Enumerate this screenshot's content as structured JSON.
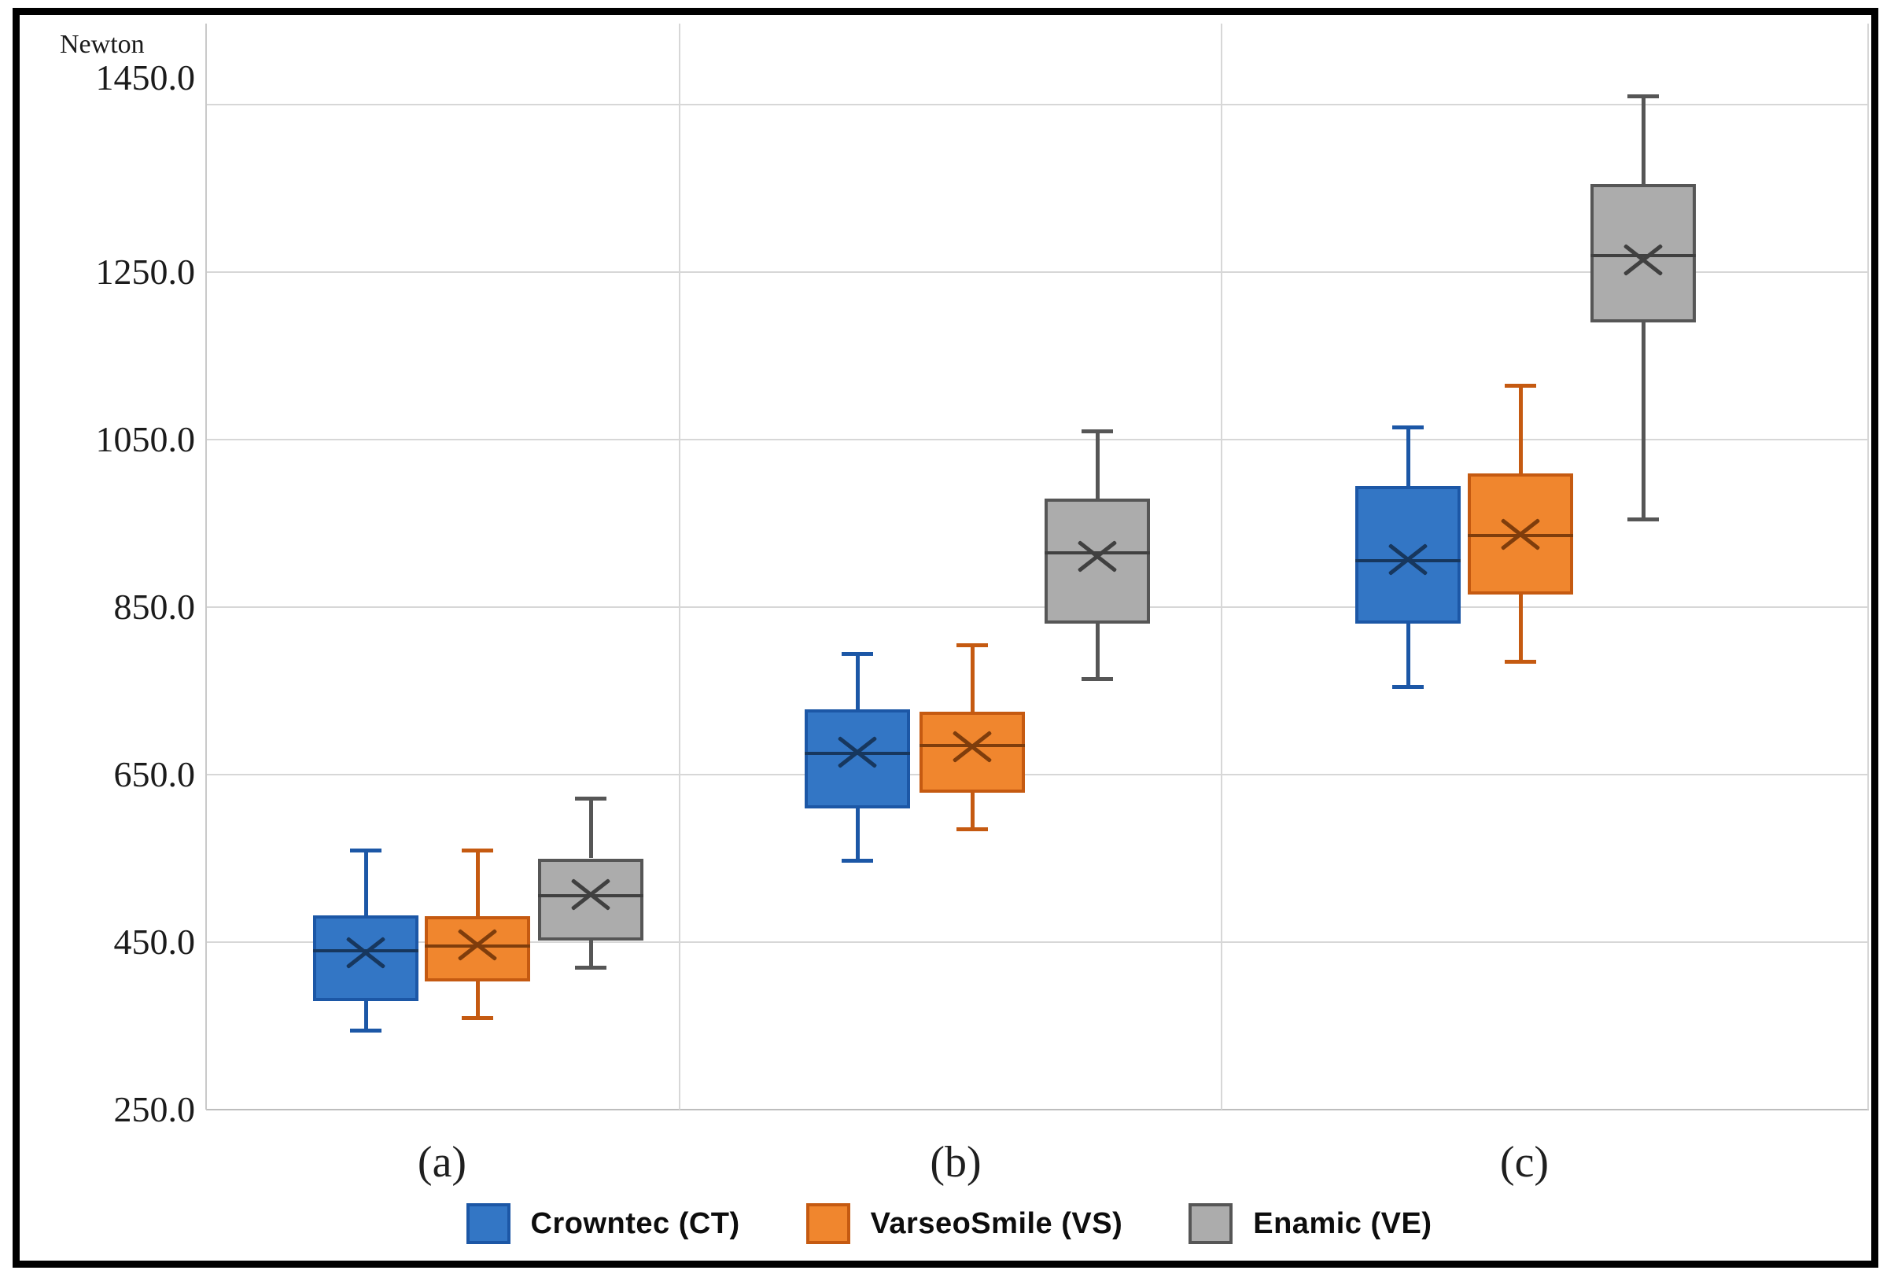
{
  "axis": {
    "title": "Newton",
    "tick_labels": [
      "1450.0",
      "1250.0",
      "1050.0",
      "850.0",
      "650.0",
      "450.0",
      "250.0"
    ],
    "tick_values": [
      1450,
      1250,
      1050,
      850,
      650,
      450,
      250
    ],
    "min": 250,
    "max": 1450
  },
  "chart_data": {
    "type": "box",
    "title": "",
    "xlabel": "",
    "ylabel": "Newton",
    "ylim": [
      250,
      1450
    ],
    "ytick_step": 200,
    "grid": "horizontal gridlines plus vertical group separators",
    "legend_position": "bottom",
    "categories": [
      "(a)",
      "(b)",
      "(c)"
    ],
    "series": [
      {
        "name": "Crowntec (CT)",
        "fill": "#3376C5",
        "stroke": "#1C57A6",
        "marker_color": "#17375E",
        "boxes": [
          {
            "min": 345,
            "q1": 380,
            "median": 440,
            "mean": 438,
            "q3": 482,
            "max": 560
          },
          {
            "min": 548,
            "q1": 610,
            "median": 675,
            "mean": 677,
            "q3": 728,
            "max": 795
          },
          {
            "min": 755,
            "q1": 830,
            "median": 905,
            "mean": 907,
            "q3": 995,
            "max": 1065
          }
        ]
      },
      {
        "name": "VarseoSmile (VS)",
        "fill": "#F0862E",
        "stroke": "#C55A11",
        "marker_color": "#7F3D0C",
        "boxes": [
          {
            "min": 360,
            "q1": 403,
            "median": 445,
            "mean": 447,
            "q3": 481,
            "max": 560
          },
          {
            "min": 585,
            "q1": 628,
            "median": 685,
            "mean": 684,
            "q3": 725,
            "max": 805
          },
          {
            "min": 785,
            "q1": 865,
            "median": 935,
            "mean": 937,
            "q3": 1010,
            "max": 1115
          }
        ]
      },
      {
        "name": "Enamic (VE)",
        "fill": "#ACACAC",
        "stroke": "#565656",
        "marker_color": "#404040",
        "boxes": [
          {
            "min": 420,
            "q1": 452,
            "median": 505,
            "mean": 507,
            "q3": 550,
            "max": 622
          },
          {
            "min": 765,
            "q1": 830,
            "median": 915,
            "mean": 911,
            "q3": 980,
            "max": 1060
          },
          {
            "min": 955,
            "q1": 1190,
            "median": 1270,
            "mean": 1265,
            "q3": 1355,
            "max": 1460
          }
        ]
      }
    ]
  }
}
